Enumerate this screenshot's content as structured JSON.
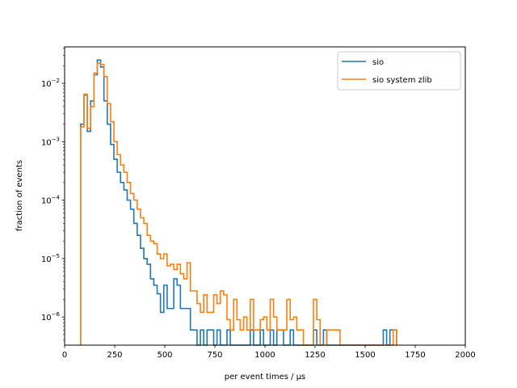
{
  "chart_data": {
    "type": "line",
    "title": "",
    "xlabel": "per event times / μs",
    "ylabel": "fraction of events",
    "xlim": [
      0,
      2000
    ],
    "ylim": [
      3.3e-07,
      0.042
    ],
    "yscale": "log",
    "grid": false,
    "legend_position": "top-right",
    "x_ticks": [
      {
        "value": 0,
        "label": "0"
      },
      {
        "value": 250,
        "label": "250"
      },
      {
        "value": 500,
        "label": "500"
      },
      {
        "value": 750,
        "label": "750"
      },
      {
        "value": 1000,
        "label": "1000"
      },
      {
        "value": 1250,
        "label": "1250"
      },
      {
        "value": 1500,
        "label": "1500"
      },
      {
        "value": 1750,
        "label": "1750"
      },
      {
        "value": 2000,
        "label": "2000"
      }
    ],
    "y_ticks": [
      {
        "value": 1e-06,
        "base": "10",
        "exp": "−6"
      },
      {
        "value": 1e-05,
        "base": "10",
        "exp": "−5"
      },
      {
        "value": 0.0001,
        "base": "10",
        "exp": "−4"
      },
      {
        "value": 0.001,
        "base": "10",
        "exp": "−3"
      },
      {
        "value": 0.01,
        "base": "10",
        "exp": "−2"
      }
    ],
    "series": [
      {
        "name": "sio",
        "color": "#1f77b4",
        "bin_start": 80,
        "bin_width": 16.6,
        "values": [
          0.002,
          0.0063,
          0.0015,
          0.005,
          0.014,
          0.025,
          0.019,
          0.005,
          0.002,
          0.0009,
          0.0005,
          0.0003,
          0.0002,
          0.00015,
          0.0001,
          7e-05,
          4e-05,
          2.5e-05,
          1.5e-05,
          1e-05,
          8e-06,
          4.5e-06,
          3.5e-06,
          2.5e-06,
          1.2e-06,
          3.5e-06,
          1.4e-06,
          1.4e-06,
          4.5e-06,
          3.5e-06,
          1.4e-06,
          1.4e-06,
          1.4e-06,
          6e-07,
          6e-07,
          0,
          6e-07,
          0,
          6e-07,
          6e-07,
          0,
          6e-07,
          0,
          0,
          6e-07,
          0,
          0,
          0,
          0,
          0,
          0,
          6e-07,
          0,
          0,
          6e-07,
          0,
          0,
          6e-07,
          0,
          6e-07,
          6e-07,
          0,
          0,
          6e-07,
          0,
          0,
          0,
          0,
          0,
          0,
          6e-07,
          0,
          0,
          6e-07,
          0,
          0,
          0,
          0,
          0,
          0,
          0,
          0,
          0,
          0,
          0,
          0,
          0,
          0,
          0,
          0,
          0,
          6e-07,
          0,
          6e-07,
          6e-07
        ]
      },
      {
        "name": "sio system zlib",
        "color": "#ff7f0e",
        "bin_start": 80,
        "bin_width": 16.6,
        "values": [
          0.0018,
          0.0065,
          0.0017,
          0.004,
          0.015,
          0.022,
          0.021,
          0.013,
          0.0045,
          0.0022,
          0.001,
          0.0006,
          0.0004,
          0.0003,
          0.0002,
          0.00013,
          0.0001,
          7e-05,
          5e-05,
          4e-05,
          2.5e-05,
          2e-05,
          1.8e-05,
          1.2e-05,
          1e-05,
          1.2e-05,
          7.5e-06,
          8e-06,
          6.5e-06,
          8e-06,
          5.5e-06,
          4.5e-06,
          8.5e-06,
          2.8e-06,
          2.8e-06,
          1.7e-06,
          1.2e-06,
          2.4e-06,
          1.2e-06,
          1.2e-06,
          2.4e-06,
          1.7e-06,
          2.8e-06,
          2.4e-06,
          9e-07,
          6e-07,
          2e-06,
          9e-07,
          6e-07,
          1e-06,
          6e-07,
          2e-06,
          6e-07,
          6e-07,
          9e-07,
          1e-06,
          6e-07,
          2e-06,
          1e-06,
          6e-07,
          6e-07,
          6e-07,
          2e-06,
          9e-07,
          1e-06,
          6e-07,
          6e-07,
          0,
          0,
          0,
          2e-06,
          9e-07,
          0,
          0,
          6e-07,
          6e-07,
          6e-07,
          6e-07,
          0,
          0,
          0,
          0,
          0,
          0,
          0,
          0,
          0,
          0,
          0,
          0,
          0,
          0,
          0,
          0,
          6e-07
        ]
      }
    ]
  }
}
